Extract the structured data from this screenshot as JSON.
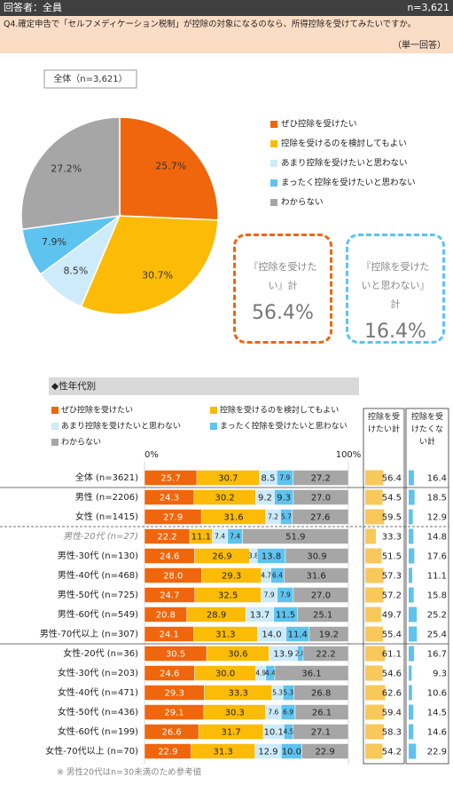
{
  "header": {
    "respondents": "回答者：全員",
    "n": "n=3,621"
  },
  "question": "Q4.確定申告で「セルフメディケーション税制」が控除の対象になるのなら、所得控除を受けてみたいですか。",
  "answer_type": "（単一回答）",
  "chart_data": [
    {
      "type": "pie",
      "label": "全体（n=3,621）",
      "categories": [
        "ぜひ控除を受けたい",
        "控除を受けるのを検討してもよい",
        "あまり控除を受けたいと思わない",
        "まったく控除を受けたいと思わない",
        "わからない"
      ],
      "values": [
        25.7,
        30.7,
        8.5,
        7.9,
        27.2
      ],
      "value_labels": [
        "25.7%",
        "30.7%",
        "8.5%",
        "7.9%",
        "27.2%"
      ],
      "colors": [
        "#f0660c",
        "#fbbb06",
        "#cdebfa",
        "#5ec3ef",
        "#a6a6a6"
      ]
    },
    {
      "type": "stacked_bar",
      "title": "◆性年代別",
      "categories": [
        "全体 (n=3621)",
        "男性 (n=2206)",
        "女性 (n=1415)",
        "男性-20代 (n=27)",
        "男性-30代 (n=130)",
        "男性-40代 (n=468)",
        "男性-50代 (n=725)",
        "男性-60代 (n=549)",
        "男性-70代以上 (n=307)",
        "女性-20代 (n=36)",
        "女性-30代 (n=203)",
        "女性-40代 (n=471)",
        "女性-50代 (n=436)",
        "女性-60代 (n=199)",
        "女性-70代以上 (n=70)"
      ],
      "series": [
        {
          "name": "ぜひ控除を受けたい",
          "color": "#f0660c",
          "values": [
            25.7,
            24.3,
            27.9,
            22.2,
            24.6,
            28.0,
            24.7,
            20.8,
            24.1,
            30.5,
            24.6,
            29.3,
            29.1,
            26.6,
            22.9
          ],
          "value_labels": [
            "25.7",
            "24.3",
            "27.9",
            "22.2",
            "24.6",
            "28.0",
            "24.7",
            "20.8",
            "24.1",
            "30.5",
            "24.6",
            "29.3",
            "29.1",
            "26.6",
            "22.9"
          ]
        },
        {
          "name": "控除を受けるのを検討してもよい",
          "color": "#fbbb06",
          "values": [
            30.7,
            30.2,
            31.6,
            11.1,
            26.9,
            29.3,
            32.5,
            28.9,
            31.3,
            30.6,
            30.0,
            33.3,
            30.3,
            31.7,
            31.3
          ],
          "value_labels": [
            "30.7",
            "30.2",
            "31.6",
            "11.1",
            "26.9",
            "29.3",
            "32.5",
            "28.9",
            "31.3",
            "30.6",
            "30.0",
            "33.3",
            "30.3",
            "31.7",
            "31.3"
          ]
        },
        {
          "name": "あまり控除を受けたいと思わない",
          "color": "#cdebfa",
          "values": [
            8.5,
            9.2,
            7.2,
            7.4,
            3.8,
            4.7,
            7.9,
            13.7,
            14.0,
            13.9,
            4.9,
            5.3,
            7.6,
            10.1,
            12.9
          ],
          "value_labels": [
            "8.5",
            "9.2",
            "7.2",
            "7.4",
            "3.8",
            "4.7",
            "7.9",
            "13.7",
            "14.0",
            "13.9",
            "4.9",
            "5.3",
            "7.6",
            "10.1",
            "12.9"
          ]
        },
        {
          "name": "まったく控除を受けたいと思わない",
          "color": "#5ec3ef",
          "values": [
            7.9,
            9.3,
            5.7,
            7.4,
            13.8,
            6.4,
            7.9,
            11.5,
            11.4,
            2.8,
            4.4,
            5.3,
            6.9,
            4.5,
            10.0
          ],
          "value_labels": [
            "7.9",
            "9.3",
            "5.7",
            "7.4",
            "13.8",
            "6.4",
            "7.9",
            "11.5",
            "11.4",
            "2.8",
            "4.4",
            "5.3",
            "6.9",
            "4.5",
            "10.0"
          ]
        },
        {
          "name": "わからない",
          "color": "#a6a6a6",
          "values": [
            27.2,
            27.0,
            27.6,
            51.9,
            30.9,
            31.6,
            27.0,
            25.1,
            19.2,
            22.2,
            36.1,
            26.8,
            26.1,
            27.1,
            22.9
          ],
          "value_labels": [
            "27.2",
            "27.0",
            "27.6",
            "51.9",
            "30.9",
            "31.6",
            "27.0",
            "25.1",
            "19.2",
            "22.2",
            "36.1",
            "26.8",
            "26.1",
            "27.1",
            "22.9"
          ]
        }
      ],
      "xlim": [
        0,
        100
      ],
      "xticks": [
        {
          "value": 0,
          "label": "0%"
        },
        {
          "value": 100,
          "label": "100%"
        }
      ],
      "summary_columns": [
        {
          "name": "控除を受けたい計",
          "color": "#f8c85a",
          "values": [
            56.4,
            54.5,
            59.5,
            33.3,
            51.5,
            57.3,
            57.2,
            49.7,
            55.4,
            61.1,
            54.6,
            62.6,
            59.4,
            58.3,
            54.2
          ]
        },
        {
          "name": "控除を受けたくない計",
          "color": "#5ec3ef",
          "values": [
            16.4,
            18.5,
            12.9,
            14.8,
            17.6,
            11.1,
            15.8,
            25.2,
            25.4,
            16.7,
            9.3,
            10.6,
            14.5,
            14.6,
            22.9
          ]
        }
      ],
      "note": "※ 男性20代はn=30未満のため参考値"
    }
  ],
  "callouts": [
    {
      "label": "『控除を受けたい』計",
      "value": "56.4%",
      "color": "#f0660c"
    },
    {
      "label": "『控除を受けたいと思わない』計",
      "value": "16.4%",
      "color": "#5ec3ef"
    }
  ]
}
